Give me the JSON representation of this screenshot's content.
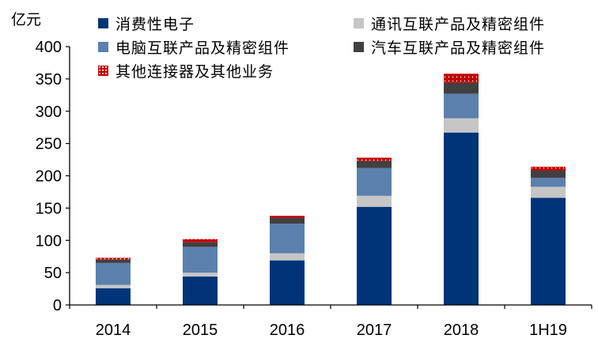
{
  "chart_data": {
    "type": "bar",
    "stacked": true,
    "ylabel": "亿元",
    "ylim": [
      0,
      400
    ],
    "yticks": [
      0,
      50,
      100,
      150,
      200,
      250,
      300,
      350,
      400
    ],
    "categories": [
      "2014",
      "2015",
      "2016",
      "2017",
      "2018",
      "1H19"
    ],
    "series": [
      {
        "name": "消费性电子",
        "color": "#003478",
        "values": [
          26,
          44,
          69,
          152,
          267,
          166
        ]
      },
      {
        "name": "通讯互联产品及精密组件",
        "color": "#c6c6c6",
        "values": [
          5,
          6,
          11,
          17,
          22,
          17
        ]
      },
      {
        "name": "电脑互联产品及精密组件",
        "color": "#5b80ad",
        "values": [
          34,
          40,
          46,
          43,
          38,
          14
        ]
      },
      {
        "name": "汽车互联产品及精密组件",
        "color": "#404040",
        "values": [
          5,
          7,
          9,
          11,
          17,
          11
        ]
      },
      {
        "name": "其他连接器及其他业务",
        "color": "#c00000",
        "pattern": "dotted",
        "values": [
          3,
          5,
          3,
          5,
          14,
          6
        ]
      }
    ],
    "legend": {
      "position": "top"
    }
  }
}
